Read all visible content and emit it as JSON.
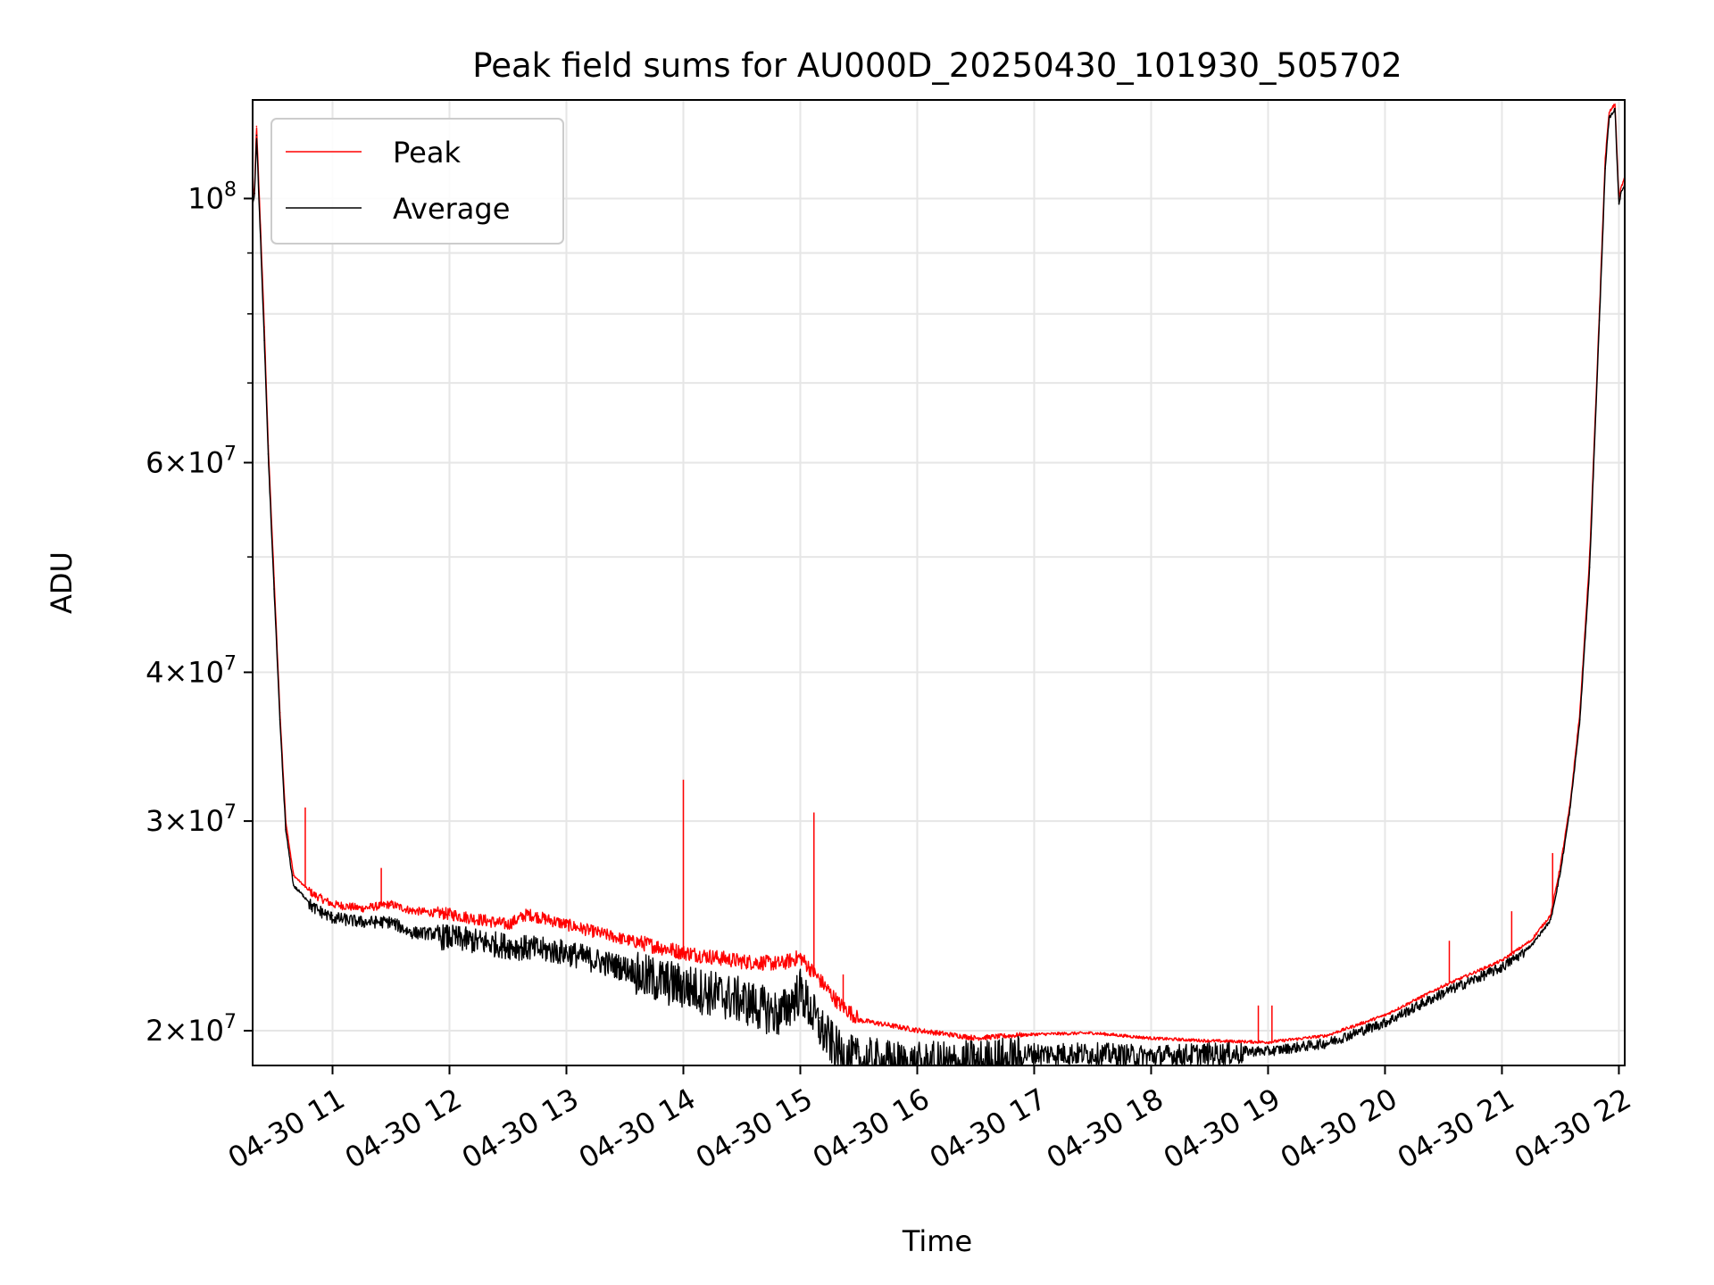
{
  "chart_data": {
    "type": "line",
    "title": "Peak field sums for AU000D_20250430_101930_505702",
    "xlabel": "Time",
    "ylabel": "ADU",
    "yscale": "log",
    "ylim": [
      18700000,
      121000000
    ],
    "xlim": [
      "2025-04-30 10:19",
      "2025-04-30 22:03"
    ],
    "grid": true,
    "legend": "top-left",
    "x_ticks": [
      "04-30 11",
      "04-30 12",
      "04-30 13",
      "04-30 14",
      "04-30 15",
      "04-30 16",
      "04-30 17",
      "04-30 18",
      "04-30 19",
      "04-30 20",
      "04-30 21",
      "04-30 22"
    ],
    "x_tick_times": [
      "2025-04-30 11:00",
      "2025-04-30 12:00",
      "2025-04-30 13:00",
      "2025-04-30 14:00",
      "2025-04-30 15:00",
      "2025-04-30 16:00",
      "2025-04-30 17:00",
      "2025-04-30 18:00",
      "2025-04-30 19:00",
      "2025-04-30 20:00",
      "2025-04-30 21:00",
      "2025-04-30 22:00"
    ],
    "y_ticks": [
      {
        "value": 100000000,
        "mantissa": "",
        "exp": "8"
      },
      {
        "value": 60000000,
        "mantissa": "6",
        "exp": "7"
      },
      {
        "value": 40000000,
        "mantissa": "4",
        "exp": "7"
      },
      {
        "value": 30000000,
        "mantissa": "3",
        "exp": "7"
      },
      {
        "value": 20000000,
        "mantissa": "2",
        "exp": "7"
      }
    ],
    "y_minor_ticks": [
      50000000,
      70000000,
      80000000,
      90000000
    ],
    "series": [
      {
        "name": "Peak",
        "color": "#ff0000",
        "x": [
          "2025-04-30 10:19",
          "2025-04-30 10:20",
          "2025-04-30 10:21",
          "2025-04-30 10:23",
          "2025-04-30 10:25",
          "2025-04-30 10:27",
          "2025-04-30 10:30",
          "2025-04-30 10:33",
          "2025-04-30 10:36",
          "2025-04-30 10:40",
          "2025-04-30 10:45",
          "2025-04-30 10:50",
          "2025-04-30 11:00",
          "2025-04-30 11:15",
          "2025-04-30 11:30",
          "2025-04-30 11:40",
          "2025-04-30 12:00",
          "2025-04-30 12:30",
          "2025-04-30 12:40",
          "2025-04-30 13:00",
          "2025-04-30 13:30",
          "2025-04-30 14:00",
          "2025-04-30 14:30",
          "2025-04-30 14:50",
          "2025-04-30 15:00",
          "2025-04-30 15:10",
          "2025-04-30 15:20",
          "2025-04-30 15:30",
          "2025-04-30 15:45",
          "2025-04-30 16:00",
          "2025-04-30 16:30",
          "2025-04-30 17:00",
          "2025-04-30 17:30",
          "2025-04-30 18:00",
          "2025-04-30 18:30",
          "2025-04-30 19:00",
          "2025-04-30 19:30",
          "2025-04-30 20:00",
          "2025-04-30 20:30",
          "2025-04-30 21:00",
          "2025-04-30 21:15",
          "2025-04-30 21:25",
          "2025-04-30 21:30",
          "2025-04-30 21:35",
          "2025-04-30 21:40",
          "2025-04-30 21:45",
          "2025-04-30 21:50",
          "2025-04-30 21:53",
          "2025-04-30 21:55",
          "2025-04-30 21:58",
          "2025-04-30 22:00",
          "2025-04-30 22:01",
          "2025-04-30 22:03"
        ],
        "values": [
          100000000,
          102000000,
          115000000,
          95000000,
          78000000,
          62000000,
          48000000,
          37000000,
          30000000,
          27000000,
          26500000,
          26000000,
          25500000,
          25300000,
          25500000,
          25200000,
          25000000,
          24500000,
          25000000,
          24500000,
          23800000,
          23200000,
          22800000,
          22700000,
          23000000,
          22000000,
          21000000,
          20400000,
          20200000,
          20000000,
          19700000,
          19850000,
          19900000,
          19700000,
          19600000,
          19550000,
          19800000,
          20600000,
          21800000,
          22900000,
          23800000,
          25000000,
          27500000,
          31000000,
          37000000,
          50000000,
          80000000,
          108000000,
          118000000,
          120000000,
          100000000,
          102000000,
          104000000
        ]
      },
      {
        "name": "Average",
        "color": "#000000",
        "x": [
          "2025-04-30 10:19",
          "2025-04-30 10:20",
          "2025-04-30 10:21",
          "2025-04-30 10:23",
          "2025-04-30 10:25",
          "2025-04-30 10:27",
          "2025-04-30 10:30",
          "2025-04-30 10:33",
          "2025-04-30 10:36",
          "2025-04-30 10:40",
          "2025-04-30 10:45",
          "2025-04-30 10:50",
          "2025-04-30 11:00",
          "2025-04-30 11:15",
          "2025-04-30 11:30",
          "2025-04-30 11:40",
          "2025-04-30 12:00",
          "2025-04-30 12:30",
          "2025-04-30 12:40",
          "2025-04-30 13:00",
          "2025-04-30 13:30",
          "2025-04-30 14:00",
          "2025-04-30 14:30",
          "2025-04-30 14:50",
          "2025-04-30 15:00",
          "2025-04-30 15:10",
          "2025-04-30 15:20",
          "2025-04-30 15:30",
          "2025-04-30 15:45",
          "2025-04-30 16:00",
          "2025-04-30 16:30",
          "2025-04-30 17:00",
          "2025-04-30 17:30",
          "2025-04-30 18:00",
          "2025-04-30 18:30",
          "2025-04-30 19:00",
          "2025-04-30 19:30",
          "2025-04-30 20:00",
          "2025-04-30 20:30",
          "2025-04-30 21:00",
          "2025-04-30 21:15",
          "2025-04-30 21:25",
          "2025-04-30 21:30",
          "2025-04-30 21:35",
          "2025-04-30 21:40",
          "2025-04-30 21:45",
          "2025-04-30 21:50",
          "2025-04-30 21:53",
          "2025-04-30 21:55",
          "2025-04-30 21:58",
          "2025-04-30 22:00",
          "2025-04-30 22:01",
          "2025-04-30 22:03"
        ],
        "values": [
          99000000,
          101000000,
          113000000,
          93000000,
          76000000,
          61000000,
          47000000,
          36500000,
          29500000,
          26500000,
          26000000,
          25500000,
          25000000,
          24800000,
          24800000,
          24300000,
          24200000,
          23800000,
          23700000,
          23500000,
          22800000,
          22200000,
          21600000,
          21000000,
          22000000,
          20500000,
          19500000,
          19200000,
          19100000,
          19000000,
          19100000,
          19300000,
          19300000,
          19200000,
          19300000,
          19300000,
          19600000,
          20400000,
          21600000,
          22700000,
          23600000,
          24800000,
          27200000,
          30800000,
          36500000,
          49000000,
          79000000,
          106000000,
          117000000,
          119000000,
          99000000,
          101000000,
          103000000
        ]
      }
    ],
    "spikes": [
      {
        "series": "Peak",
        "x": "2025-04-30 10:46",
        "value": 30800000
      },
      {
        "series": "Peak",
        "x": "2025-04-30 11:25",
        "value": 27400000
      },
      {
        "series": "Peak",
        "x": "2025-04-30 14:00",
        "value": 32500000
      },
      {
        "series": "Peak",
        "x": "2025-04-30 15:07",
        "value": 30500000
      },
      {
        "series": "Peak",
        "x": "2025-04-30 15:22",
        "value": 22300000
      },
      {
        "series": "Peak",
        "x": "2025-04-30 18:55",
        "value": 21000000
      },
      {
        "series": "Peak",
        "x": "2025-04-30 19:02",
        "value": 21000000
      },
      {
        "series": "Peak",
        "x": "2025-04-30 20:33",
        "value": 23800000
      },
      {
        "series": "Peak",
        "x": "2025-04-30 21:05",
        "value": 25200000
      },
      {
        "series": "Peak",
        "x": "2025-04-30 21:26",
        "value": 28200000
      }
    ]
  }
}
